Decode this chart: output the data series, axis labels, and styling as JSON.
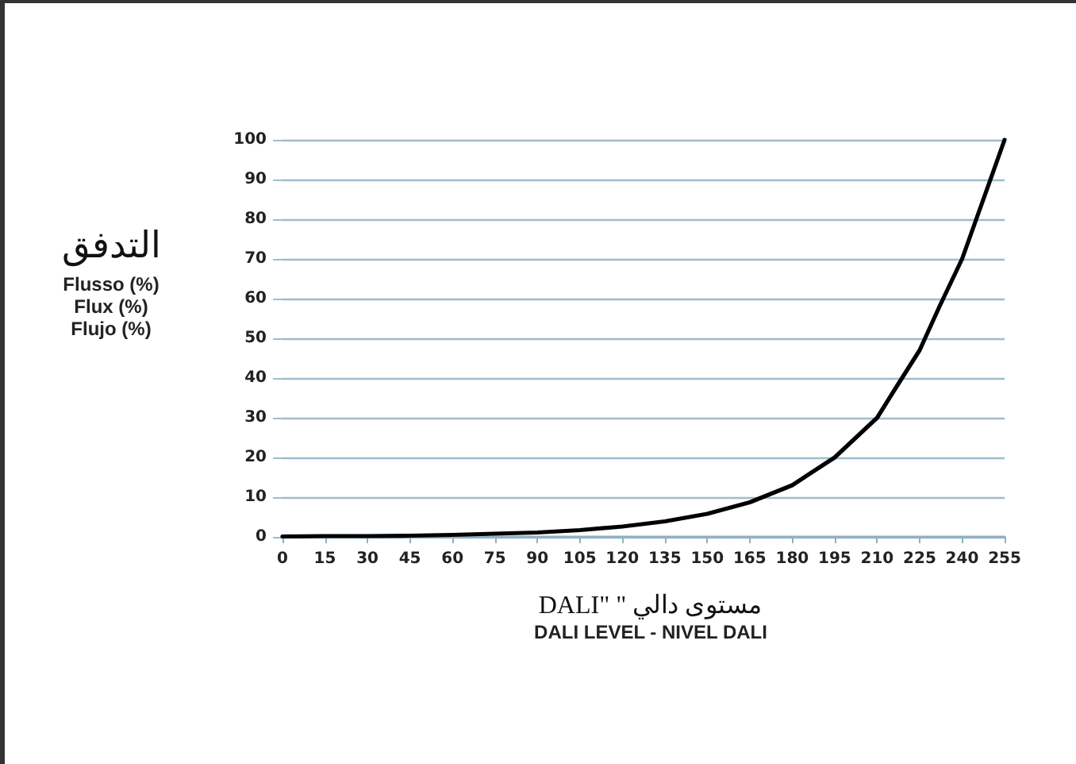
{
  "chart_data": {
    "type": "line",
    "xlabel": "مستوى دالي \" \"DALI\nDALI  LEVEL - NIVEL DALI",
    "ylabel": "التدفق\nFlusso (%)\nFlux (%)\nFlujo (%)",
    "x": [
      0,
      15,
      30,
      45,
      60,
      75,
      90,
      105,
      120,
      135,
      150,
      165,
      180,
      195,
      210,
      217,
      225,
      232,
      240,
      247,
      255
    ],
    "series": [
      {
        "color": "#000000",
        "values": [
          0.1,
          0.2,
          0.2,
          0.3,
          0.5,
          0.8,
          1.1,
          1.7,
          2.6,
          3.9,
          5.8,
          8.7,
          13,
          20,
          30,
          38,
          47,
          58,
          70,
          84,
          100
        ]
      }
    ],
    "xlim": [
      0,
      255
    ],
    "xticks": [
      0,
      15,
      30,
      45,
      60,
      75,
      90,
      105,
      120,
      135,
      150,
      165,
      180,
      195,
      210,
      225,
      240,
      255
    ],
    "ylim": [
      0,
      100
    ],
    "yticks": [
      0,
      10,
      20,
      30,
      40,
      50,
      60,
      70,
      80,
      90,
      100
    ],
    "grid": "y",
    "marker": "none",
    "line_style": "solid"
  }
}
